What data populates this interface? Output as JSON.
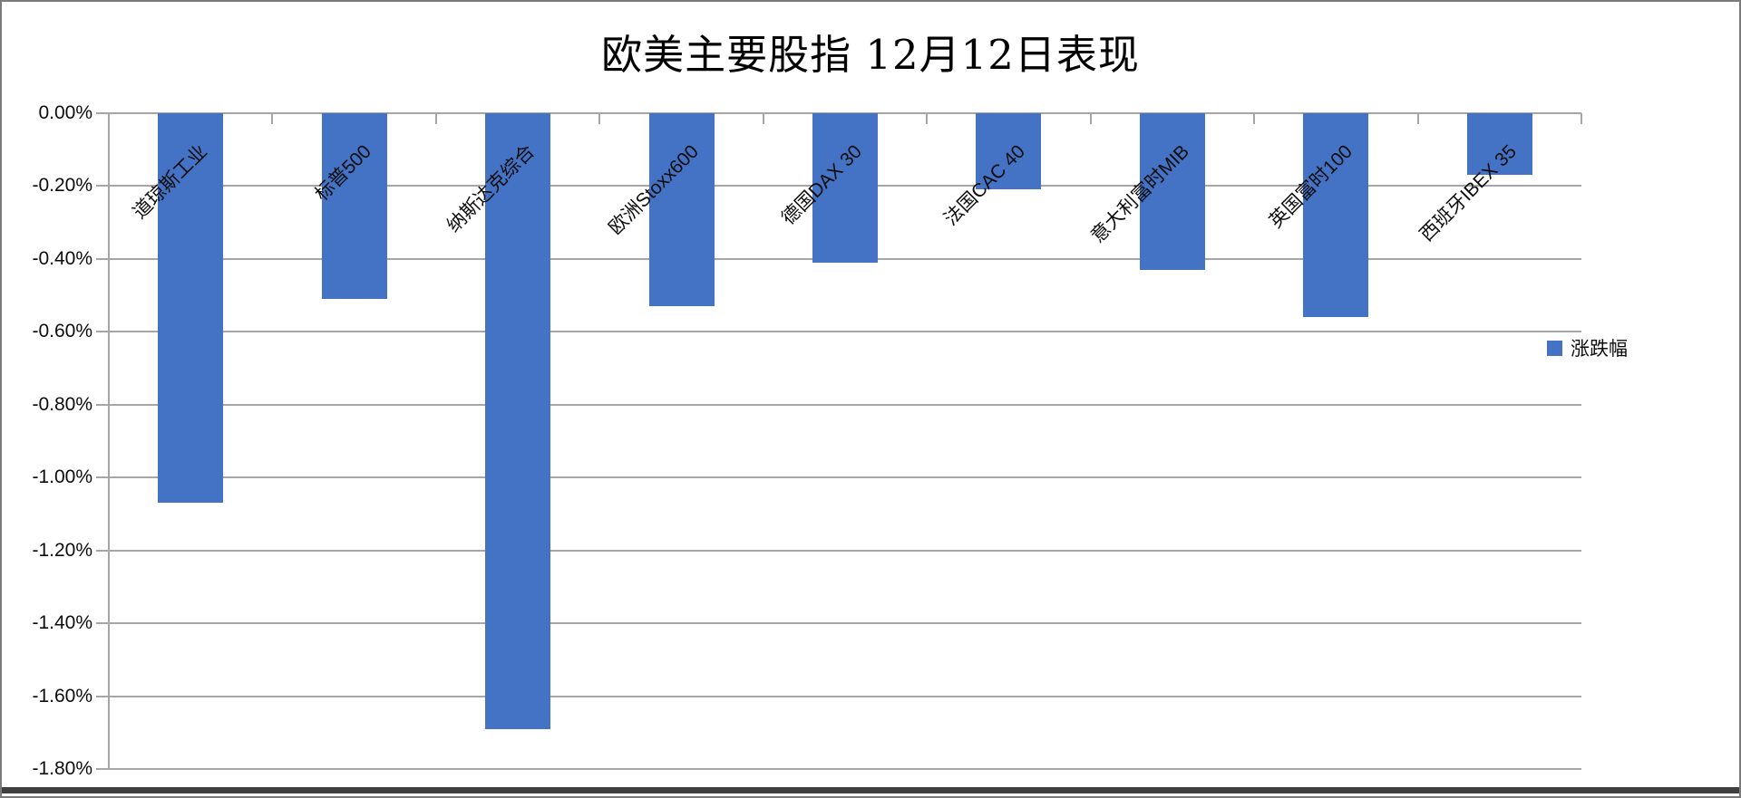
{
  "chart_data": {
    "type": "bar",
    "title": "欧美主要股指 12月12日表现",
    "categories": [
      "道琼斯工业",
      "标普500",
      "纳斯达克综合",
      "欧洲Stoxx600",
      "德国DAX 30",
      "法国CAC 40",
      "意大利富时MIB",
      "英国富时100",
      "西班牙IBEX 35"
    ],
    "series": [
      {
        "name": "涨跌幅",
        "values": [
          -1.07,
          -0.51,
          -1.69,
          -0.53,
          -0.41,
          -0.21,
          -0.43,
          -0.56,
          -0.17
        ]
      }
    ],
    "xlabel": "",
    "ylabel": "",
    "ylim": [
      -1.8,
      0
    ],
    "ytick_step": 0.2,
    "ytick_labels": [
      "0.00%",
      "-0.20%",
      "-0.40%",
      "-0.60%",
      "-0.80%",
      "-1.00%",
      "-1.20%",
      "-1.40%",
      "-1.60%",
      "-1.80%"
    ],
    "grid": true,
    "legend_position": "right",
    "bar_color": "#4472C4",
    "grid_color": "#A6A6A6",
    "axis_color": "#A6A6A6"
  }
}
